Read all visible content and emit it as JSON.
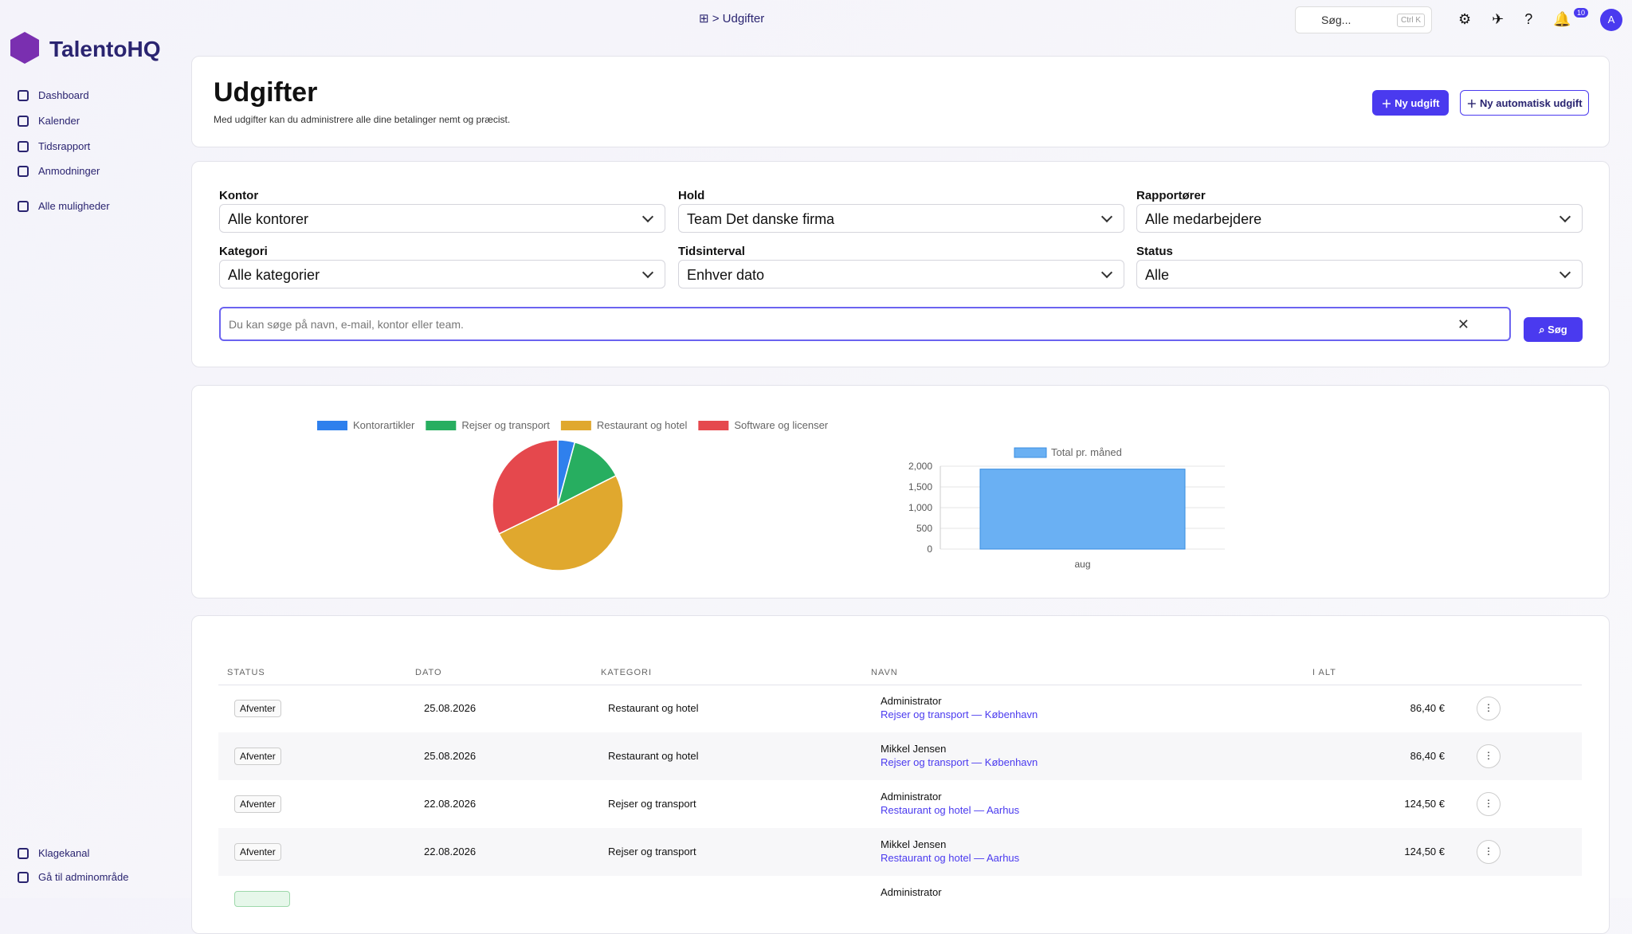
{
  "topbar": {
    "breadcrumb": "Udgifter",
    "search_placeholder": "Søg...",
    "search_shortcut": "Ctrl K",
    "notification_count": "10",
    "avatar": "A"
  },
  "sidebar": {
    "logo": "TalentoHQ",
    "items": [
      "Dashboard",
      "Kalender",
      "Tidsrapport",
      "Anmodninger"
    ],
    "all": "Alle muligheder",
    "bottom": [
      "Klagekanal",
      "Gå til adminområde"
    ]
  },
  "header": {
    "title": "Udgifter",
    "subtitle": "Med udgifter kan du administrere alle dine betalinger nemt og præcist.",
    "buttons": [
      "Ny udgift",
      "Ny automatisk udgift"
    ]
  },
  "filters": [
    {
      "label": "Kontor",
      "value": "Alle kontorer"
    },
    {
      "label": "Hold",
      "value": "Team Det danske firma"
    },
    {
      "label": "Rapportører",
      "value": "Alle medarbejdere"
    },
    {
      "label": "Kategori",
      "value": "Alle kategorier"
    },
    {
      "label": "Tidsinterval",
      "value": "Enhver dato"
    },
    {
      "label": "Status",
      "value": "Alle"
    }
  ],
  "search": {
    "placeholder": "Du kan søge på navn, e-mail, kontor eller team.",
    "button": "Søg"
  },
  "chart_data": [
    {
      "type": "pie",
      "categories": [
        "Kontorartikler",
        "Rejser og transport",
        "Restaurant og hotel",
        "Software og licenser"
      ],
      "values": [
        4.2,
        13.3,
        50.3,
        32.2
      ],
      "colors": [
        "#2f80ed",
        "#27ae60",
        "#e0a82e",
        "#e5484d"
      ],
      "legend": "top"
    },
    {
      "type": "bar",
      "series": [
        {
          "name": "Total pr. måned",
          "color": "#6ab0f3",
          "values": [
            1930
          ]
        }
      ],
      "categories": [
        "aug"
      ],
      "ylim": [
        0,
        2000
      ],
      "yticks": [
        0,
        500,
        {
          "value": 1000,
          "label": "1,000"
        },
        {
          "value": 1500,
          "label": "1,500"
        },
        {
          "value": 2000,
          "label": "2,000"
        }
      ],
      "grid": true,
      "legend": "top"
    }
  ],
  "table": {
    "columns": [
      "STATUS",
      "DATO",
      "KATEGORI",
      "NAVN",
      "I ALT"
    ],
    "rows": [
      [
        "Afventer",
        "25.08.2026",
        "Restaurant og hotel",
        "Administrator",
        "Rejser og transport — København",
        "86,40 €"
      ],
      [
        "Afventer",
        "25.08.2026",
        "Restaurant og hotel",
        "Mikkel Jensen",
        "Rejser og transport — København",
        "86,40 €"
      ],
      [
        "Afventer",
        "22.08.2026",
        "Rejser og transport",
        "Administrator",
        "Restaurant og hotel — Aarhus",
        "124,50 €"
      ],
      [
        "Afventer",
        "22.08.2026",
        "Rejser og transport",
        "Mikkel Jensen",
        "Restaurant og hotel — Aarhus",
        "124,50 €"
      ],
      [
        "",
        "",
        "",
        "Administrator",
        "",
        ""
      ]
    ]
  }
}
